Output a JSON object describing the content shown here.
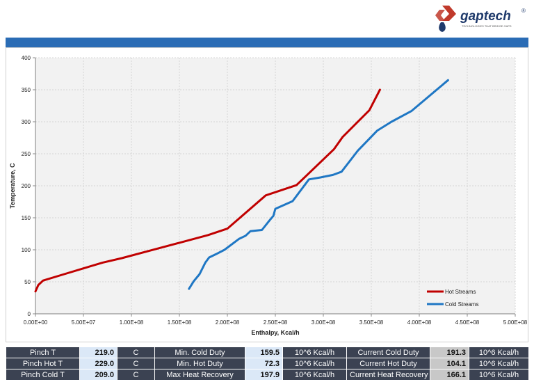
{
  "brand": {
    "name": "gaptech",
    "registered": "®",
    "tagline": "TECHNOLOGIES THAT BRIDGE GAPS",
    "logo_color": "#c0392b",
    "text_color": "#1f3a6b"
  },
  "chart_data": {
    "type": "line",
    "title": "",
    "xlabel": "Enthalpy, Kcal/h",
    "ylabel": "Temperature, C",
    "xlim": [
      0,
      500000000
    ],
    "ylim": [
      0,
      400
    ],
    "x_ticks": [
      0,
      50000000,
      100000000,
      150000000,
      200000000,
      250000000,
      300000000,
      350000000,
      400000000,
      450000000,
      500000000
    ],
    "x_tick_labels": [
      "0.00E+00",
      "5.00E+07",
      "1.00E+08",
      "1.50E+08",
      "2.00E+08",
      "2.50E+08",
      "3.00E+08",
      "3.50E+08",
      "4.00E+08",
      "4.50E+08",
      "5.00E+08"
    ],
    "y_ticks": [
      0,
      50,
      100,
      150,
      200,
      250,
      300,
      350,
      400
    ],
    "y_tick_labels": [
      "0",
      "50",
      "100",
      "150",
      "200",
      "250",
      "300",
      "350",
      "400"
    ],
    "grid": true,
    "legend_position": "bottom-right",
    "series": [
      {
        "name": "Hot Streams",
        "color": "#c00000",
        "points": [
          [
            0,
            35
          ],
          [
            3000000,
            45
          ],
          [
            8000000,
            52
          ],
          [
            30000000,
            62
          ],
          [
            50000000,
            71
          ],
          [
            70000000,
            80
          ],
          [
            90000000,
            87
          ],
          [
            120000000,
            99
          ],
          [
            150000000,
            111
          ],
          [
            180000000,
            123
          ],
          [
            190000000,
            128
          ],
          [
            200000000,
            133
          ],
          [
            240000000,
            185
          ],
          [
            272000000,
            201
          ],
          [
            311000000,
            257
          ],
          [
            320000000,
            276
          ],
          [
            348000000,
            318
          ],
          [
            359000000,
            350
          ]
        ]
      },
      {
        "name": "Cold Streams",
        "color": "#1f77c4",
        "points": [
          [
            160000000,
            39
          ],
          [
            165000000,
            51
          ],
          [
            171000000,
            62
          ],
          [
            177000000,
            80
          ],
          [
            181000000,
            88
          ],
          [
            188000000,
            93
          ],
          [
            197000000,
            100
          ],
          [
            212000000,
            117
          ],
          [
            219000000,
            122
          ],
          [
            224000000,
            129
          ],
          [
            236000000,
            131
          ],
          [
            244000000,
            146
          ],
          [
            248000000,
            153
          ],
          [
            250000000,
            164
          ],
          [
            268000000,
            176
          ],
          [
            285000000,
            210
          ],
          [
            297000000,
            213
          ],
          [
            310000000,
            217
          ],
          [
            319000000,
            222
          ],
          [
            336000000,
            255
          ],
          [
            356000000,
            286
          ],
          [
            371000000,
            300
          ],
          [
            392000000,
            317
          ],
          [
            430000000,
            365
          ]
        ]
      }
    ]
  },
  "summary": {
    "rows": [
      [
        {
          "t": "Pinch T",
          "k": "dark"
        },
        {
          "t": "219.0",
          "k": "val"
        },
        {
          "t": "C",
          "k": "dark"
        },
        {
          "t": "Min. Cold Duty",
          "k": "dark"
        },
        {
          "t": "159.5",
          "k": "val"
        },
        {
          "t": "10^6 Kcal/h",
          "k": "dark"
        },
        {
          "t": "Current Cold Duty",
          "k": "dark"
        },
        {
          "t": "191.3",
          "k": "gray"
        },
        {
          "t": "10^6 Kcal/h",
          "k": "dark"
        }
      ],
      [
        {
          "t": "Pinch Hot T",
          "k": "dark"
        },
        {
          "t": "229.0",
          "k": "val"
        },
        {
          "t": "C",
          "k": "dark"
        },
        {
          "t": "Min. Hot Duty",
          "k": "dark"
        },
        {
          "t": "72.3",
          "k": "val"
        },
        {
          "t": "10^6 Kcal/h",
          "k": "dark"
        },
        {
          "t": "Current Hot Duty",
          "k": "dark"
        },
        {
          "t": "104.1",
          "k": "gray"
        },
        {
          "t": "10^6 Kcal/h",
          "k": "dark"
        }
      ],
      [
        {
          "t": "Pinch Cold T",
          "k": "dark"
        },
        {
          "t": "209.0",
          "k": "val"
        },
        {
          "t": "C",
          "k": "dark"
        },
        {
          "t": "Max Heat Recovery",
          "k": "dark"
        },
        {
          "t": "197.9",
          "k": "val"
        },
        {
          "t": "10^6 Kcal/h",
          "k": "dark"
        },
        {
          "t": "Current Heat Recovery",
          "k": "dark"
        },
        {
          "t": "166.1",
          "k": "gray"
        },
        {
          "t": "10^6 Kcal/h",
          "k": "dark"
        }
      ]
    ]
  }
}
